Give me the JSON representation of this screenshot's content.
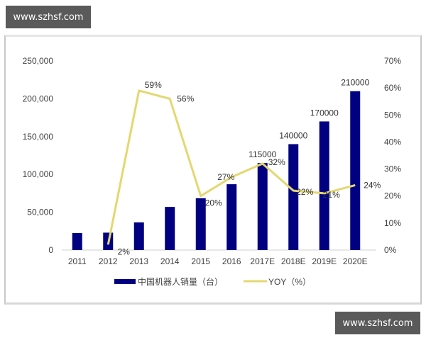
{
  "watermark": {
    "top": "www.szhsf.com",
    "bottom": "www.szhsf.com"
  },
  "colors": {
    "bar": "#000080",
    "line": "#e3d870",
    "axis_text": "#404040",
    "baseline": "#d0d0d0"
  },
  "chart_data": {
    "type": "bar+line",
    "title": "",
    "categories": [
      "2011",
      "2012",
      "2013",
      "2014",
      "2015",
      "2016",
      "2017E",
      "2018E",
      "2019E",
      "2020E"
    ],
    "series": [
      {
        "name": "中国机器人销量（台）",
        "type": "bar",
        "axis": "left",
        "values": [
          22500,
          23000,
          36500,
          57000,
          68500,
          87000,
          115000,
          140000,
          170000,
          210000
        ],
        "labels": [
          "",
          "",
          "",
          "",
          "",
          "",
          "115000",
          "140000",
          "170000",
          "210000"
        ]
      },
      {
        "name": "YOY（%）",
        "type": "line",
        "axis": "right",
        "values": [
          null,
          2,
          59,
          56,
          20,
          27,
          32,
          22,
          21,
          24
        ],
        "labels": [
          "",
          "2%",
          "59%",
          "56%",
          "20%",
          "27%",
          "32%",
          "22%",
          "21%",
          "24%"
        ]
      }
    ],
    "left_axis": {
      "ylim": [
        0,
        250000
      ],
      "ticks": [
        "0",
        "50,000",
        "100,000",
        "150,000",
        "200,000",
        "250,000"
      ]
    },
    "right_axis": {
      "ylim": [
        0,
        70
      ],
      "ticks": [
        "0%",
        "10%",
        "20%",
        "30%",
        "40%",
        "50%",
        "60%",
        "70%"
      ]
    },
    "legend": {
      "position": "bottom",
      "entries": [
        "中国机器人销量（台）",
        "YOY（%）"
      ]
    },
    "grid": false
  }
}
